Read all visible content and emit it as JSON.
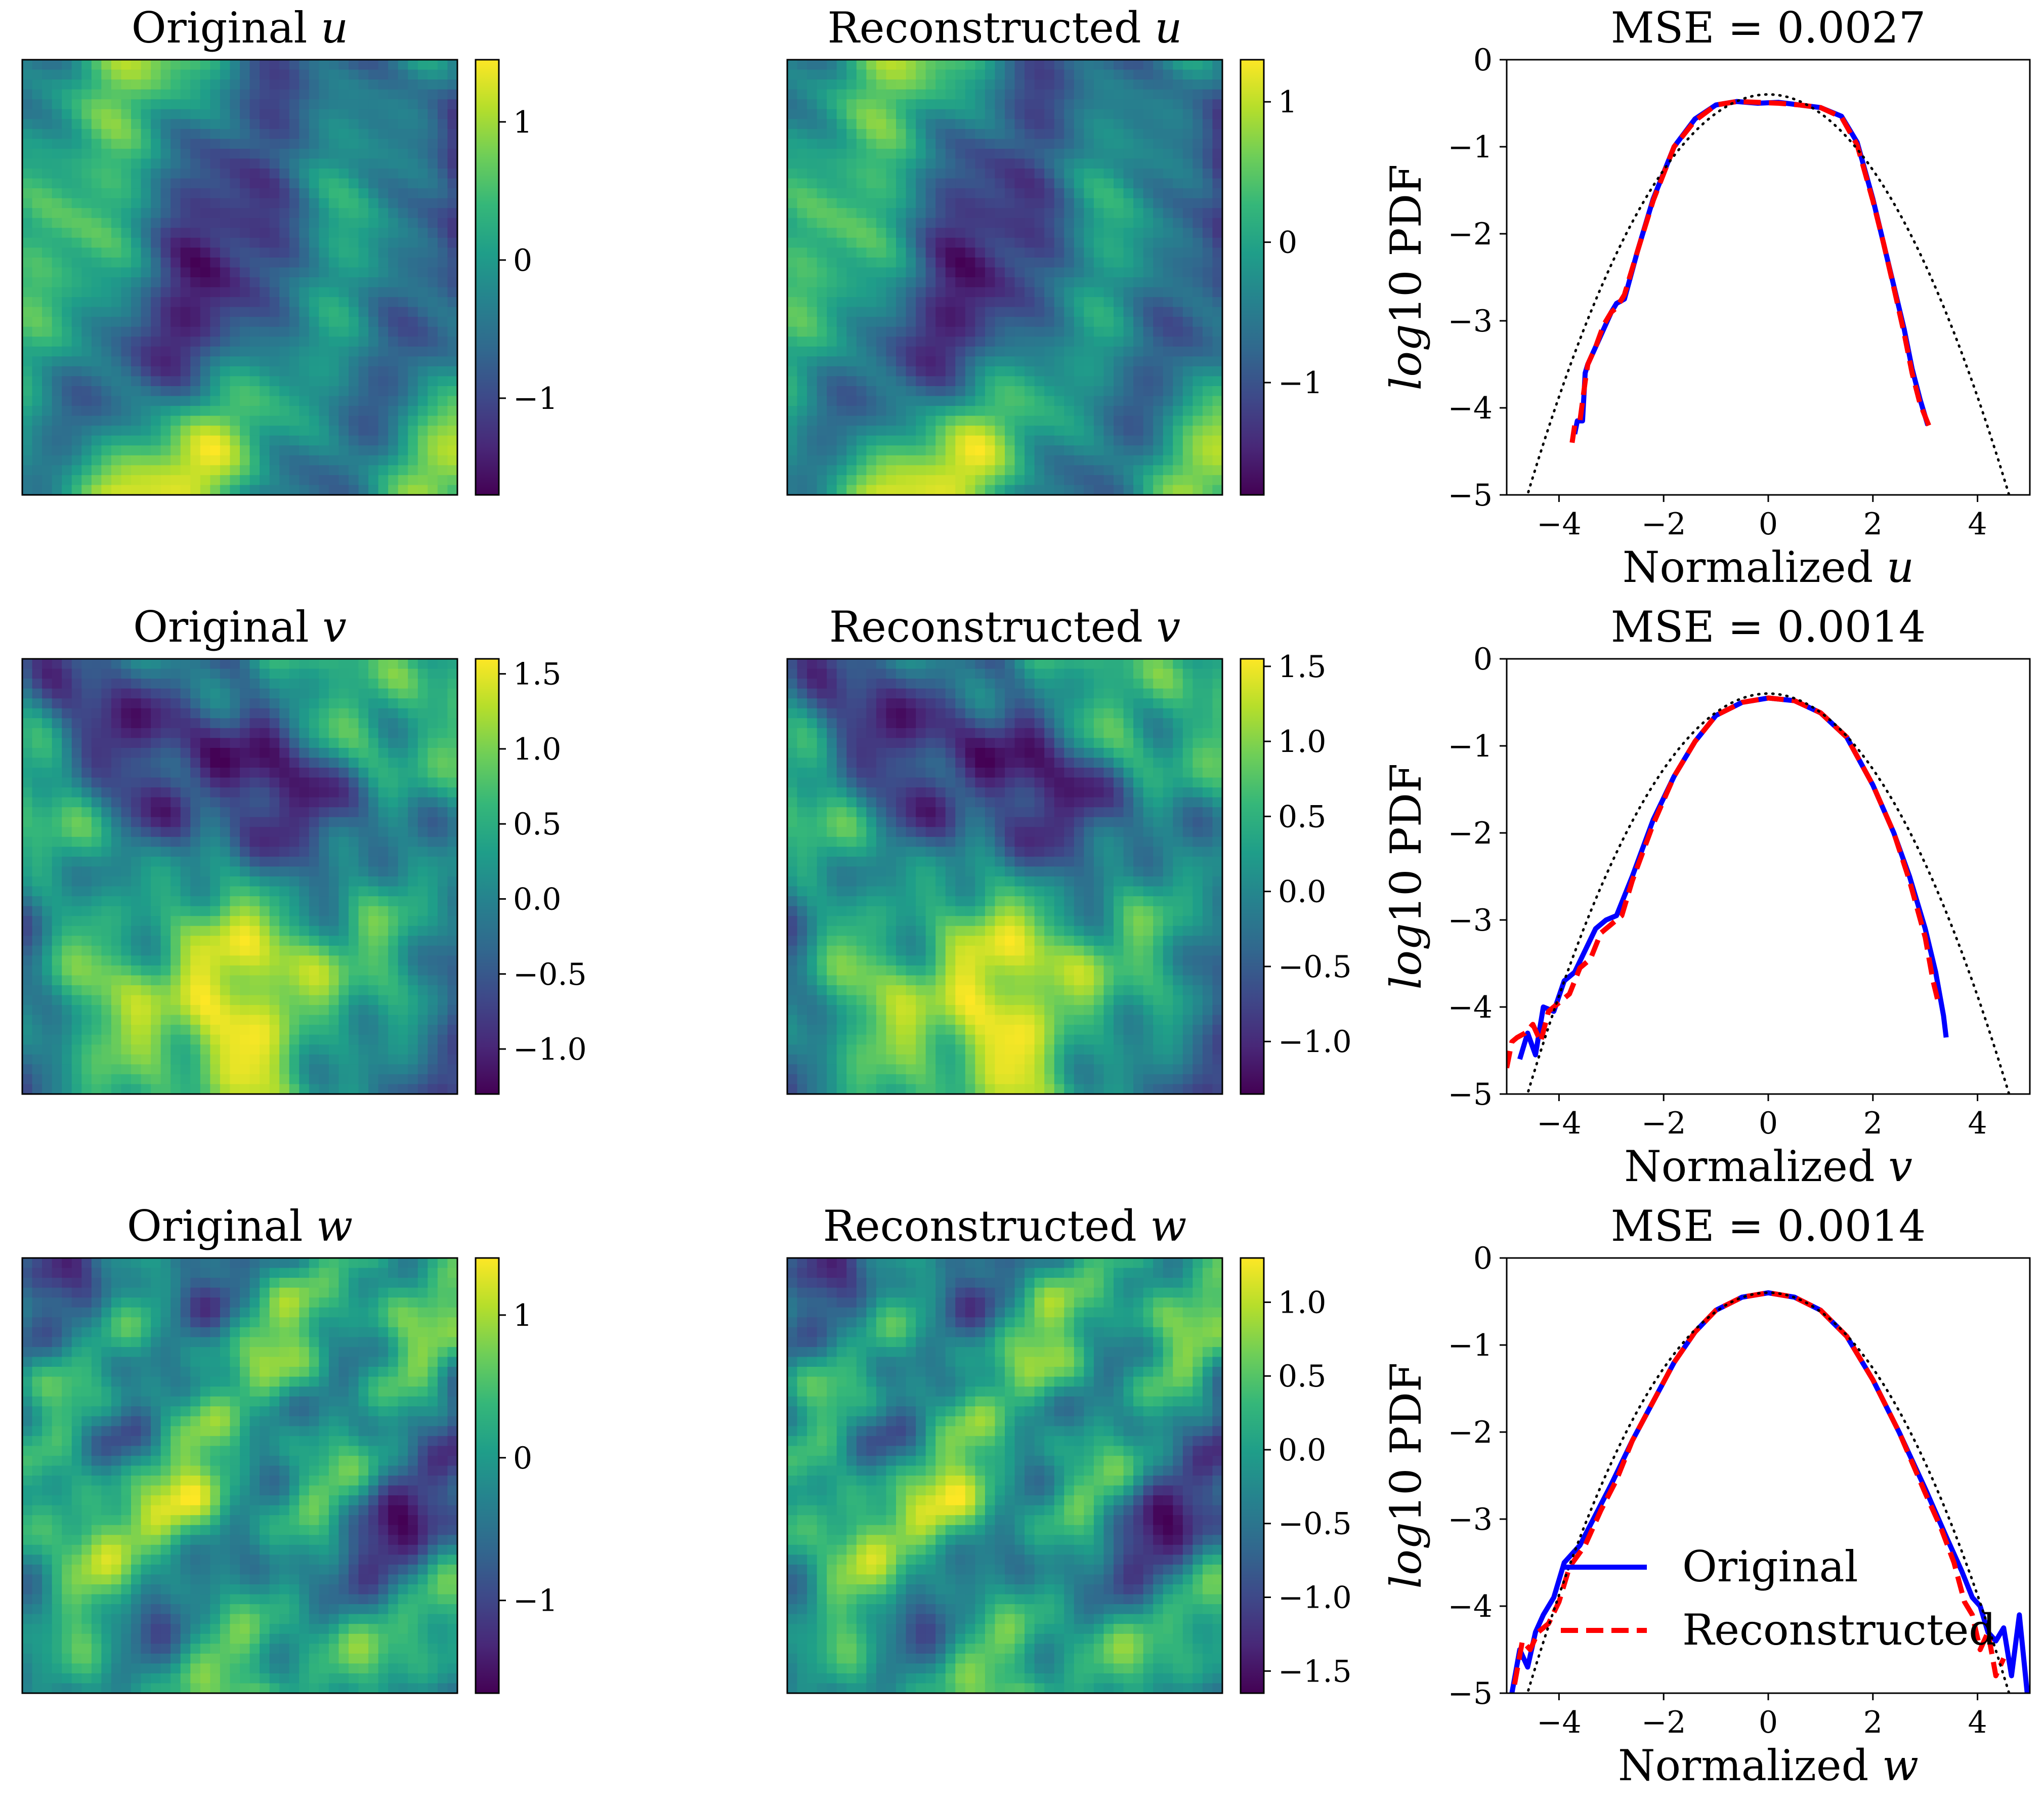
{
  "colors": {
    "original": "#0000ff",
    "reconstructed": "#ff0000",
    "gaussian": "#000000",
    "viridis": [
      "#440154",
      "#482878",
      "#3e4989",
      "#31688e",
      "#26828e",
      "#1f9e89",
      "#35b779",
      "#6ece58",
      "#b5de2b",
      "#fde725"
    ]
  },
  "chart_data": [
    {
      "type": "heatmap",
      "title_text": "Original ",
      "title_var": "u",
      "colorbar": {
        "min": -1.7,
        "max": 1.45,
        "ticks": [
          -1,
          0,
          1
        ],
        "tick_labels": [
          "−1",
          "0",
          "1"
        ]
      },
      "seed": 11
    },
    {
      "type": "heatmap",
      "title_text": "Reconstructed ",
      "title_var": "u",
      "colorbar": {
        "min": -1.8,
        "max": 1.3,
        "ticks": [
          -1,
          0,
          1
        ],
        "tick_labels": [
          "−1",
          "0",
          "1"
        ]
      },
      "seed": 11
    },
    {
      "type": "line",
      "title": "MSE = 0.0027",
      "xlabel_text": "Normalized ",
      "xlabel_var": "u",
      "ylabel_italic": "log",
      "ylabel_rest": "10 PDF",
      "xlim": [
        -5,
        5
      ],
      "ylim": [
        -5,
        0
      ],
      "xticks": [
        -4,
        -2,
        0,
        2,
        4
      ],
      "xtick_labels": [
        "−4",
        "−2",
        "0",
        "2",
        "4"
      ],
      "yticks": [
        0,
        -1,
        -2,
        -3,
        -4,
        -5
      ],
      "ytick_labels": [
        "0",
        "−1",
        "−2",
        "−3",
        "−4",
        "−5"
      ],
      "series": [
        {
          "name": "Original",
          "style": "solid",
          "x": [
            -3.7,
            -3.65,
            -3.55,
            -3.5,
            -3.45,
            -3.3,
            -3.15,
            -3.0,
            -2.9,
            -2.75,
            -2.5,
            -2.2,
            -1.8,
            -1.4,
            -1.0,
            -0.6,
            -0.2,
            0.2,
            0.6,
            1.0,
            1.4,
            1.7,
            2.0,
            2.2,
            2.4,
            2.6,
            2.75,
            2.9,
            3.05
          ],
          "y": [
            -4.3,
            -4.15,
            -4.15,
            -3.6,
            -3.5,
            -3.3,
            -3.1,
            -2.9,
            -2.8,
            -2.75,
            -2.2,
            -1.6,
            -1.0,
            -0.68,
            -0.52,
            -0.48,
            -0.5,
            -0.49,
            -0.52,
            -0.55,
            -0.65,
            -0.95,
            -1.6,
            -2.1,
            -2.6,
            -3.1,
            -3.55,
            -3.9,
            -4.2
          ]
        },
        {
          "name": "Reconstructed",
          "style": "dashed",
          "x": [
            -3.75,
            -3.7,
            -3.6,
            -3.5,
            -3.45,
            -3.3,
            -3.15,
            -3.0,
            -2.9,
            -2.75,
            -2.5,
            -2.2,
            -1.8,
            -1.4,
            -1.0,
            -0.6,
            -0.2,
            0.2,
            0.6,
            1.0,
            1.4,
            1.7,
            2.0,
            2.2,
            2.4,
            2.6,
            2.75,
            2.9,
            3.1
          ],
          "y": [
            -4.4,
            -4.2,
            -4.15,
            -3.7,
            -3.5,
            -3.3,
            -3.05,
            -2.9,
            -2.85,
            -2.7,
            -2.2,
            -1.62,
            -1.0,
            -0.7,
            -0.52,
            -0.48,
            -0.49,
            -0.5,
            -0.52,
            -0.55,
            -0.66,
            -0.98,
            -1.62,
            -2.1,
            -2.62,
            -3.15,
            -3.6,
            -3.95,
            -4.25
          ]
        },
        {
          "name": "Gaussian",
          "style": "dotted",
          "func": "gaussian"
        }
      ]
    },
    {
      "type": "heatmap",
      "title_text": "Original ",
      "title_var": "v",
      "colorbar": {
        "min": -1.3,
        "max": 1.6,
        "ticks": [
          1.5,
          1.0,
          0.5,
          0.0,
          -0.5,
          -1.0
        ],
        "tick_labels": [
          "1.5",
          "1.0",
          "0.5",
          "0.0",
          "−0.5",
          "−1.0"
        ]
      },
      "seed": 23
    },
    {
      "type": "heatmap",
      "title_text": "Reconstructed ",
      "title_var": "v",
      "colorbar": {
        "min": -1.35,
        "max": 1.55,
        "ticks": [
          1.5,
          1.0,
          0.5,
          0.0,
          -0.5,
          -1.0
        ],
        "tick_labels": [
          "1.5",
          "1.0",
          "0.5",
          "0.0",
          "−0.5",
          "−1.0"
        ]
      },
      "seed": 23
    },
    {
      "type": "line",
      "title": "MSE = 0.0014",
      "xlabel_text": "Normalized ",
      "xlabel_var": "v",
      "ylabel_italic": "log",
      "ylabel_rest": "10 PDF",
      "xlim": [
        -5,
        5
      ],
      "ylim": [
        -5,
        0
      ],
      "xticks": [
        -4,
        -2,
        0,
        2,
        4
      ],
      "xtick_labels": [
        "−4",
        "−2",
        "0",
        "2",
        "4"
      ],
      "yticks": [
        0,
        -1,
        -2,
        -3,
        -4,
        -5
      ],
      "ytick_labels": [
        "0",
        "−1",
        "−2",
        "−3",
        "−4",
        "−5"
      ],
      "series": [
        {
          "name": "Original",
          "style": "solid",
          "x": [
            -4.75,
            -4.6,
            -4.45,
            -4.3,
            -4.1,
            -3.9,
            -3.7,
            -3.5,
            -3.3,
            -3.1,
            -2.9,
            -2.6,
            -2.2,
            -1.8,
            -1.4,
            -1.0,
            -0.5,
            0.0,
            0.5,
            1.0,
            1.5,
            2.0,
            2.4,
            2.7,
            3.0,
            3.2,
            3.35,
            3.4
          ],
          "y": [
            -4.6,
            -4.3,
            -4.55,
            -4.0,
            -4.05,
            -3.7,
            -3.6,
            -3.35,
            -3.1,
            -3.0,
            -2.95,
            -2.5,
            -1.85,
            -1.35,
            -0.95,
            -0.65,
            -0.5,
            -0.45,
            -0.48,
            -0.62,
            -0.9,
            -1.45,
            -2.0,
            -2.5,
            -3.1,
            -3.6,
            -4.1,
            -4.35
          ]
        },
        {
          "name": "Reconstructed",
          "style": "dashed",
          "x": [
            -5.0,
            -4.9,
            -4.8,
            -4.65,
            -4.5,
            -4.35,
            -4.2,
            -4.0,
            -3.8,
            -3.6,
            -3.4,
            -3.2,
            -3.0,
            -2.8,
            -2.6,
            -2.2,
            -1.8,
            -1.4,
            -1.0,
            -0.5,
            0.0,
            0.5,
            1.0,
            1.5,
            2.0,
            2.4,
            2.7,
            3.0,
            3.15,
            3.25
          ],
          "y": [
            -4.7,
            -4.4,
            -4.35,
            -4.3,
            -4.2,
            -4.4,
            -4.05,
            -3.95,
            -3.85,
            -3.55,
            -3.45,
            -3.15,
            -3.05,
            -2.95,
            -2.55,
            -1.9,
            -1.35,
            -0.95,
            -0.65,
            -0.5,
            -0.45,
            -0.48,
            -0.62,
            -0.9,
            -1.45,
            -2.0,
            -2.55,
            -3.2,
            -3.7,
            -3.95
          ]
        },
        {
          "name": "Gaussian",
          "style": "dotted",
          "func": "gaussian"
        }
      ]
    },
    {
      "type": "heatmap",
      "title_text": "Original ",
      "title_var": "w",
      "colorbar": {
        "min": -1.65,
        "max": 1.4,
        "ticks": [
          -1,
          0,
          1
        ],
        "tick_labels": [
          "−1",
          "0",
          "1"
        ]
      },
      "seed": 37
    },
    {
      "type": "heatmap",
      "title_text": "Reconstructed ",
      "title_var": "w",
      "colorbar": {
        "min": -1.65,
        "max": 1.3,
        "ticks": [
          1.0,
          0.5,
          0.0,
          -0.5,
          -1.0,
          -1.5
        ],
        "tick_labels": [
          "1.0",
          "0.5",
          "0.0",
          "−0.5",
          "−1.0",
          "−1.5"
        ]
      },
      "seed": 37
    },
    {
      "type": "line",
      "title": "MSE = 0.0014",
      "xlabel_text": "Normalized ",
      "xlabel_var": "w",
      "ylabel_italic": "log",
      "ylabel_rest": "10 PDF",
      "xlim": [
        -5,
        5
      ],
      "ylim": [
        -5,
        0
      ],
      "xticks": [
        -4,
        -2,
        0,
        2,
        4
      ],
      "xtick_labels": [
        "−4",
        "−2",
        "0",
        "2",
        "4"
      ],
      "yticks": [
        0,
        -1,
        -2,
        -3,
        -4,
        -5
      ],
      "ytick_labels": [
        "0",
        "−1",
        "−2",
        "−3",
        "−4",
        "−5"
      ],
      "series": [
        {
          "name": "Original",
          "style": "solid",
          "x": [
            -4.9,
            -4.75,
            -4.6,
            -4.45,
            -4.3,
            -4.1,
            -3.9,
            -3.6,
            -3.3,
            -3.0,
            -2.6,
            -2.2,
            -1.8,
            -1.4,
            -1.0,
            -0.5,
            0.0,
            0.5,
            1.0,
            1.5,
            2.0,
            2.5,
            3.0,
            3.4,
            3.7,
            3.9,
            4.05,
            4.2,
            4.35,
            4.5,
            4.65,
            4.8,
            4.95
          ],
          "y": [
            -5.0,
            -4.5,
            -4.7,
            -4.3,
            -4.1,
            -3.9,
            -3.5,
            -3.3,
            -2.95,
            -2.6,
            -2.1,
            -1.65,
            -1.2,
            -0.85,
            -0.6,
            -0.45,
            -0.4,
            -0.45,
            -0.6,
            -0.9,
            -1.4,
            -2.0,
            -2.65,
            -3.2,
            -3.6,
            -3.9,
            -4.0,
            -4.3,
            -4.4,
            -4.25,
            -4.8,
            -4.1,
            -5.0
          ]
        },
        {
          "name": "Reconstructed",
          "style": "dashed",
          "x": [
            -4.85,
            -4.7,
            -4.55,
            -4.4,
            -4.2,
            -4.0,
            -3.8,
            -3.5,
            -3.2,
            -2.9,
            -2.6,
            -2.2,
            -1.8,
            -1.4,
            -1.0,
            -0.5,
            0.0,
            0.5,
            1.0,
            1.5,
            2.0,
            2.5,
            3.0,
            3.3,
            3.55,
            3.75,
            3.9,
            4.05,
            4.2,
            4.35,
            4.5
          ],
          "y": [
            -4.9,
            -4.4,
            -4.5,
            -4.3,
            -4.2,
            -3.95,
            -3.55,
            -3.3,
            -2.9,
            -2.55,
            -2.1,
            -1.65,
            -1.2,
            -0.85,
            -0.6,
            -0.45,
            -0.4,
            -0.45,
            -0.6,
            -0.9,
            -1.4,
            -2.0,
            -2.7,
            -3.1,
            -3.5,
            -3.95,
            -4.1,
            -4.5,
            -4.3,
            -4.8,
            -4.6
          ]
        },
        {
          "name": "Gaussian",
          "style": "dotted",
          "func": "gaussian"
        }
      ],
      "legend": {
        "placement": "lower-right",
        "entries": [
          "Original",
          "Reconstructed"
        ]
      }
    }
  ]
}
